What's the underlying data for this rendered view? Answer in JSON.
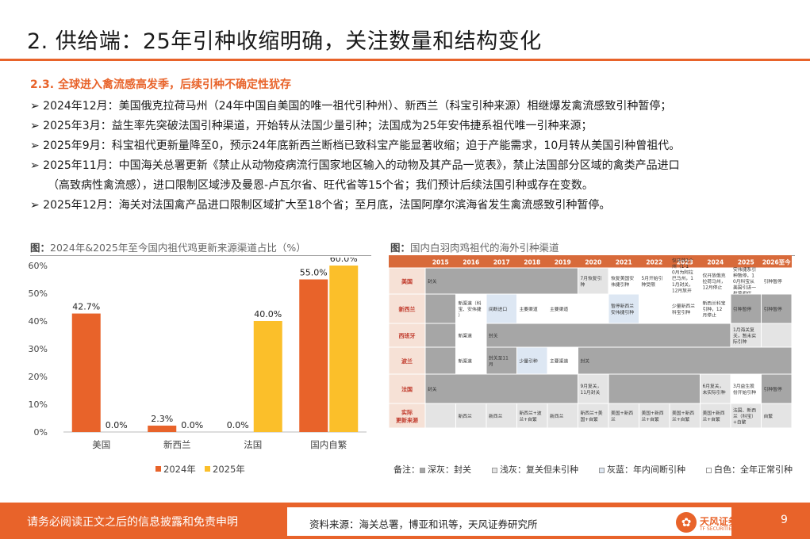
{
  "header": {
    "title": "2. 供给端：25年引种收缩明确，关注数量和结构变化",
    "subtitle": "2.3. 全球进入禽流感高发季，后续引种不确定性犹存"
  },
  "bullets": [
    {
      "lines": [
        "➢ 2024年12月：美国俄克拉荷马州（24年中国自美国的唯一祖代引种州）、新西兰（科宝引种来源）相继爆发禽流感致引种暂停；"
      ]
    },
    {
      "lines": [
        "➢ 2025年3月：益生率先突破法国引种渠道，开始转从法国少量引种；法国成为25年安伟捷系祖代唯一引种来源；"
      ]
    },
    {
      "lines": [
        "➢ 2025年9月：科宝祖代更新量降至0，预示24年底新西兰断档已致科宝产能显著收缩；迫于产能需求，10月转从美国引种曾祖代。"
      ]
    },
    {
      "lines": [
        "➢ 2025年11月：中国海关总署更新《禁止从动物疫病流行国家地区输入的动物及其产品一览表》，禁止法国部分区域的禽类产品进口",
        "（高致病性禽流感），进口限制区域涉及曼恩-卢瓦尔省、旺代省等15个省；我们预计后续法国引种或存在变数。"
      ]
    },
    {
      "lines": [
        "➢ 2025年12月：海关对法国禽产品进口限制区域扩大至18个省；至月底，法国阿摩尔滨海省发生禽流感致引种暂停。"
      ]
    }
  ],
  "figure_left": {
    "caption_prefix": "图：",
    "caption": "2024年&2025年至今国内祖代鸡更新来源渠道占比（%）"
  },
  "chart_data": {
    "type": "bar",
    "categories": [
      "美国",
      "新西兰",
      "法国",
      "国内自繁"
    ],
    "series": [
      {
        "name": "2024年",
        "values": [
          42.7,
          2.3,
          0.0,
          55.0
        ],
        "labels": [
          "42.7%",
          "2.3%",
          "0.0%",
          "55.0%"
        ],
        "color": "#e8632a"
      },
      {
        "name": "2025年",
        "values": [
          0.0,
          0.0,
          40.0,
          60.0
        ],
        "labels": [
          "0.0%",
          "0.0%",
          "40.0%",
          "60.0%"
        ],
        "color": "#fbbf2a"
      }
    ],
    "ylim": [
      0,
      60
    ],
    "yticks": [
      0,
      10,
      20,
      30,
      40,
      50,
      60
    ],
    "ytick_labels": [
      "0%",
      "10%",
      "20%",
      "30%",
      "40%",
      "50%",
      "60%"
    ],
    "legend_position": "bottom",
    "grid": false
  },
  "figure_right": {
    "caption_prefix": "图：",
    "caption": "国内白羽肉鸡祖代的海外引种渠道",
    "years": [
      "2015",
      "2016",
      "2017",
      "2018",
      "2019",
      "2020",
      "2021",
      "2022",
      "2023",
      "2024",
      "2025",
      "2026至今"
    ],
    "rows": [
      {
        "label": "美国",
        "cells": [
          {
            "span": 5,
            "text": "封关",
            "fill": "dark"
          },
          {
            "span": 1,
            "text": "7月恢复引种",
            "fill": "light"
          },
          {
            "span": 1,
            "text": "恢复美国安伟捷引种",
            "fill": "white"
          },
          {
            "span": 1,
            "text": "5月开始引种受限",
            "fill": "white"
          },
          {
            "span": 1,
            "text": "仅开放1个州（1-10月为阿拉巴马州，11月封关，12月放开俄克拉荷马州）",
            "fill": "white"
          },
          {
            "span": 1,
            "text": "仅开放俄克拉荷马州，12月停止",
            "fill": "white"
          },
          {
            "span": 1,
            "text": "安伟捷系引种暂停，10月科宝从美国引进一批曾祖代",
            "fill": "white"
          },
          {
            "span": 1,
            "text": "引种暂停",
            "fill": "white"
          }
        ]
      },
      {
        "label": "新西兰",
        "cells": [
          {
            "span": 1,
            "text": "",
            "fill": "dark"
          },
          {
            "span": 1,
            "text": "新渠道（科宝、安伟捷）",
            "fill": "white"
          },
          {
            "span": 1,
            "text": "间断进口",
            "fill": "blue"
          },
          {
            "span": 1,
            "text": "主要渠道",
            "fill": "white"
          },
          {
            "span": 1,
            "text": "主要渠道",
            "fill": "white"
          },
          {
            "span": 1,
            "text": "",
            "fill": "white"
          },
          {
            "span": 1,
            "text": "暂停新西兰安伟捷引种",
            "fill": "blue"
          },
          {
            "span": 1,
            "text": "",
            "fill": "white"
          },
          {
            "span": 1,
            "text": "少量新西兰科宝引种",
            "fill": "white"
          },
          {
            "span": 1,
            "text": "新西兰科宝引种，12月停止",
            "fill": "white"
          },
          {
            "span": 1,
            "text": "引种暂停",
            "fill": "dark"
          },
          {
            "span": 1,
            "text": "引种暂停",
            "fill": "dark"
          }
        ]
      },
      {
        "label": "西班牙",
        "cells": [
          {
            "span": 1,
            "text": "",
            "fill": "dark"
          },
          {
            "span": 1,
            "text": "新渠道",
            "fill": "white"
          },
          {
            "span": 8,
            "text": "封关",
            "fill": "dark"
          },
          {
            "span": 1,
            "text": "1月海关复关，暂未实际引种",
            "fill": "light"
          },
          {
            "span": 1,
            "text": "",
            "fill": "light"
          }
        ]
      },
      {
        "label": "波兰",
        "cells": [
          {
            "span": 1,
            "text": "",
            "fill": "dark"
          },
          {
            "span": 1,
            "text": "新渠道",
            "fill": "white"
          },
          {
            "span": 1,
            "text": "封关至11月",
            "fill": "dark"
          },
          {
            "span": 1,
            "text": "少量引种",
            "fill": "blue"
          },
          {
            "span": 1,
            "text": "主要渠道",
            "fill": "white"
          },
          {
            "span": 7,
            "text": "封关",
            "fill": "dark"
          }
        ]
      },
      {
        "label": "法国",
        "cells": [
          {
            "span": 5,
            "text": "封关",
            "fill": "dark"
          },
          {
            "span": 1,
            "text": "9月复关，11月封关",
            "fill": "light"
          },
          {
            "span": 3,
            "text": "",
            "fill": "dark"
          },
          {
            "span": 1,
            "text": "6月复关，未实际引种",
            "fill": "light"
          },
          {
            "span": 1,
            "text": "3月益生股份开始引种",
            "fill": "white"
          },
          {
            "span": 1,
            "text": "引种暂停",
            "fill": "dark"
          }
        ]
      },
      {
        "label": "实际更新来源",
        "cells": [
          {
            "span": 1,
            "text": "",
            "fill": "light"
          },
          {
            "span": 1,
            "text": "新西兰",
            "fill": "light"
          },
          {
            "span": 1,
            "text": "新西兰",
            "fill": "light"
          },
          {
            "span": 1,
            "text": "新西兰+波兰+自繁",
            "fill": "light"
          },
          {
            "span": 1,
            "text": "新西兰",
            "fill": "light"
          },
          {
            "span": 1,
            "text": "新西兰+美国+自繁",
            "fill": "light"
          },
          {
            "span": 1,
            "text": "美国+新西兰",
            "fill": "light"
          },
          {
            "span": 1,
            "text": "美国+新西兰+自繁",
            "fill": "light"
          },
          {
            "span": 1,
            "text": "美国+新西兰+自繁",
            "fill": "light"
          },
          {
            "span": 1,
            "text": "美国+新西兰+自繁",
            "fill": "light"
          },
          {
            "span": 1,
            "text": "法国、新西兰（科宝）+自繁",
            "fill": "light"
          },
          {
            "span": 1,
            "text": "自繁",
            "fill": "light"
          }
        ]
      }
    ],
    "legend": {
      "prefix": "备注：",
      "items": [
        {
          "text": "深灰：封关",
          "color": "#a6a6a6"
        },
        {
          "text": "浅灰：复关但未引种",
          "color": "#e4e4e4"
        },
        {
          "text": "灰蓝：年内间断引种",
          "color": "#dde7f3"
        },
        {
          "text": "白色：全年正常引种",
          "color": "#ffffff"
        }
      ]
    }
  },
  "footer": {
    "disclaimer": "请务必阅读正文之后的信息披露和免责申明",
    "source": "资料来源：海关总署，博亚和讯等，天风证券研究所",
    "logo_text": "天风证券",
    "logo_sub": "TF SECURITIES",
    "page_number": "9"
  }
}
